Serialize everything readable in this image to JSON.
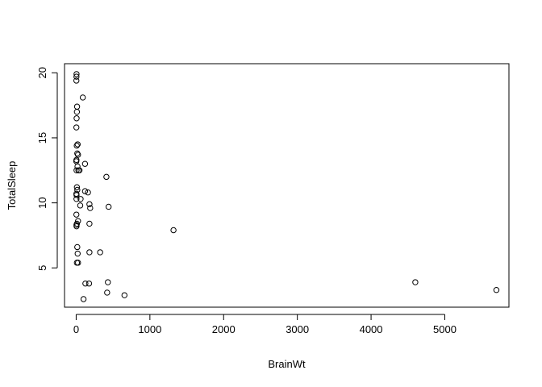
{
  "chart_data": {
    "type": "scatter",
    "title": "",
    "xlabel": "BrainWt",
    "ylabel": "TotalSleep",
    "xlim": [
      -158,
      5870
    ],
    "ylim": [
      1.98,
      20.7
    ],
    "xticks": [
      0,
      1000,
      2000,
      3000,
      4000,
      5000
    ],
    "yticks": [
      5,
      10,
      15,
      20
    ],
    "grid": false,
    "marker": "open-circle",
    "marker_color": "#000000",
    "points": [
      {
        "x": 5,
        "y": 19.9
      },
      {
        "x": 4,
        "y": 19.7
      },
      {
        "x": 3,
        "y": 19.4
      },
      {
        "x": 90,
        "y": 18.1
      },
      {
        "x": 12,
        "y": 17.4
      },
      {
        "x": 10,
        "y": 17.0
      },
      {
        "x": 6,
        "y": 16.5
      },
      {
        "x": 3,
        "y": 15.8
      },
      {
        "x": 20,
        "y": 14.5
      },
      {
        "x": 8,
        "y": 14.4
      },
      {
        "x": 15,
        "y": 13.8
      },
      {
        "x": 25,
        "y": 13.7
      },
      {
        "x": 4,
        "y": 13.3
      },
      {
        "x": 2,
        "y": 13.2
      },
      {
        "x": 120,
        "y": 13.0
      },
      {
        "x": 18,
        "y": 12.8
      },
      {
        "x": 5,
        "y": 12.5
      },
      {
        "x": 30,
        "y": 12.5
      },
      {
        "x": 45,
        "y": 12.5
      },
      {
        "x": 410,
        "y": 12.0
      },
      {
        "x": 10,
        "y": 11.2
      },
      {
        "x": 15,
        "y": 11.0
      },
      {
        "x": 120,
        "y": 10.9
      },
      {
        "x": 160,
        "y": 10.8
      },
      {
        "x": 3,
        "y": 10.7
      },
      {
        "x": 5,
        "y": 10.6
      },
      {
        "x": 4,
        "y": 10.3
      },
      {
        "x": 60,
        "y": 10.3
      },
      {
        "x": 180,
        "y": 9.9
      },
      {
        "x": 55,
        "y": 9.8
      },
      {
        "x": 190,
        "y": 9.6
      },
      {
        "x": 440,
        "y": 9.7
      },
      {
        "x": 3,
        "y": 9.1
      },
      {
        "x": 25,
        "y": 8.6
      },
      {
        "x": 10,
        "y": 8.4
      },
      {
        "x": 180,
        "y": 8.4
      },
      {
        "x": 4,
        "y": 8.3
      },
      {
        "x": 5,
        "y": 8.2
      },
      {
        "x": 1320,
        "y": 7.9
      },
      {
        "x": 15,
        "y": 6.6
      },
      {
        "x": 180,
        "y": 6.2
      },
      {
        "x": 325,
        "y": 6.2
      },
      {
        "x": 20,
        "y": 6.1
      },
      {
        "x": 10,
        "y": 5.4
      },
      {
        "x": 25,
        "y": 5.4
      },
      {
        "x": 430,
        "y": 3.9
      },
      {
        "x": 125,
        "y": 3.8
      },
      {
        "x": 175,
        "y": 3.8
      },
      {
        "x": 4600,
        "y": 3.9
      },
      {
        "x": 5700,
        "y": 3.3
      },
      {
        "x": 420,
        "y": 3.1
      },
      {
        "x": 655,
        "y": 2.9
      },
      {
        "x": 100,
        "y": 2.6
      }
    ]
  }
}
